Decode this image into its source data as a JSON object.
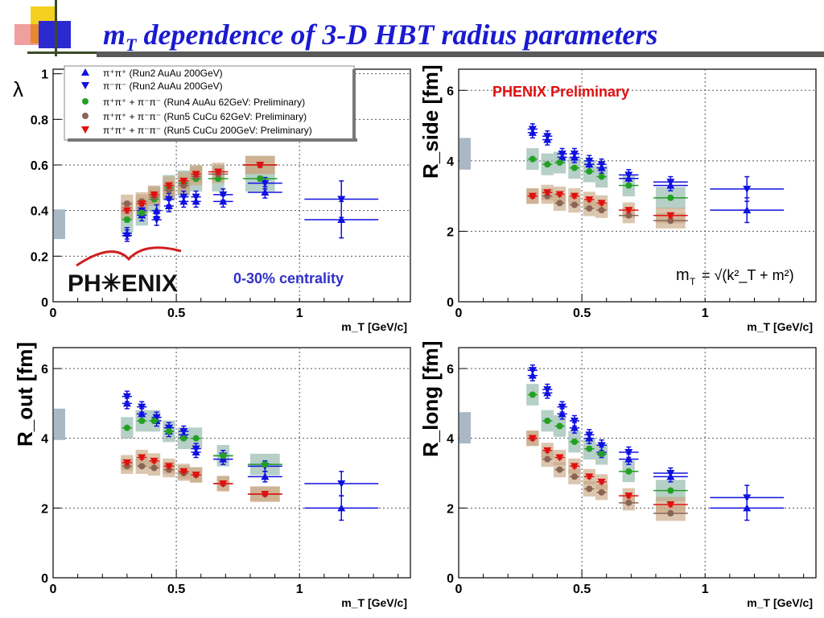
{
  "slide": {
    "title_pre": "m",
    "title_sub": "T",
    "title_post": " dependence of 3-D HBT radius parameters"
  },
  "colors": {
    "run2_pp": "#1010e0",
    "run2_mm": "#1010e0",
    "run4_62": "#22a022",
    "cucu_62": "#8b6355",
    "cucu_200": "#e01010",
    "title": "#1a1ad0"
  },
  "legend": [
    {
      "text": "π⁺π⁺ (Run2 AuAu 200GeV)",
      "marker": "triangle-up",
      "color": "#1010e0"
    },
    {
      "text": "π⁻π⁻ (Run2 AuAu 200GeV)",
      "marker": "triangle-down",
      "color": "#1010e0"
    },
    {
      "text": "π⁺π⁺ + π⁻π⁻ (Run4 AuAu 62GeV: Preliminary)",
      "marker": "circle",
      "color": "#22a022"
    },
    {
      "text": "π⁺π⁺ + π⁻π⁻ (Run5 CuCu 62GeV: Preliminary)",
      "marker": "circle",
      "color": "#8b6355"
    },
    {
      "text": "π⁺π⁺ + π⁻π⁻ (Run5 CuCu 200GeV: Preliminary)",
      "marker": "triangle-down",
      "color": "#e01010"
    }
  ],
  "annotations": {
    "phenix_logo": "PH✳ENIX",
    "centrality": "0-30% centrality",
    "preliminary": "PHENIX Preliminary",
    "formula_lhs": "m",
    "formula_lhs_sub": "T",
    "formula_rhs": "= √(k²_T + m²)"
  },
  "chart_data": [
    {
      "type": "scatter",
      "panel": "lambda",
      "ylabel": "λ",
      "xlabel": "m_T [GeV/c]",
      "xlim": [
        0,
        1.45
      ],
      "ylim": [
        0,
        1.02
      ],
      "xticks": [
        "0",
        "0.5",
        "1"
      ],
      "yticks": [
        "0",
        "0.2",
        "0.4",
        "0.6",
        "0.8",
        "1"
      ],
      "grid": true,
      "series": [
        {
          "name": "π⁺π⁺ (Run2 AuAu 200GeV)",
          "marker": "triangle-up",
          "x": [
            0.3,
            0.36,
            0.42,
            0.47,
            0.53,
            0.58,
            0.69,
            0.86,
            1.17
          ],
          "y": [
            0.3,
            0.38,
            0.4,
            0.42,
            0.44,
            0.44,
            0.44,
            0.48,
            0.36
          ]
        },
        {
          "name": "π⁻π⁻ (Run2 AuAu 200GeV)",
          "marker": "triangle-down",
          "x": [
            0.3,
            0.36,
            0.42,
            0.47,
            0.53,
            0.58,
            0.69,
            0.86,
            1.17
          ],
          "y": [
            0.29,
            0.4,
            0.36,
            0.45,
            0.46,
            0.46,
            0.47,
            0.52,
            0.45
          ]
        },
        {
          "name": "π⁺π⁺ + π⁻π⁻ (Run4 AuAu 62GeV: Preliminary)",
          "marker": "circle",
          "x": [
            0.3,
            0.36,
            0.41,
            0.47,
            0.53,
            0.58,
            0.67,
            0.84
          ],
          "y": [
            0.36,
            0.39,
            0.45,
            0.5,
            0.52,
            0.54,
            0.54,
            0.54
          ]
        },
        {
          "name": "π⁺π⁺ + π⁻π⁻ (Run5 CuCu 62GeV: Preliminary)",
          "marker": "circle",
          "x": [
            0.3,
            0.36,
            0.41,
            0.47,
            0.53,
            0.58,
            0.67,
            0.84
          ],
          "y": [
            0.43,
            0.44,
            0.46,
            0.49,
            0.51,
            0.55,
            0.56,
            0.6
          ]
        },
        {
          "name": "π⁺π⁺ + π⁻π⁻ (Run5 CuCu 200GeV: Preliminary)",
          "marker": "triangle-down",
          "x": [
            0.3,
            0.36,
            0.41,
            0.47,
            0.53,
            0.58,
            0.67,
            0.84
          ],
          "y": [
            0.4,
            0.43,
            0.47,
            0.51,
            0.53,
            0.56,
            0.57,
            0.6
          ]
        }
      ]
    },
    {
      "type": "scatter",
      "panel": "R_side",
      "ylabel": "R_side [fm]",
      "xlabel": "m_T [GeV/c]",
      "xlim": [
        0,
        1.45
      ],
      "ylim": [
        0,
        6.6
      ],
      "xticks": [
        "0",
        "0.5",
        "1"
      ],
      "yticks": [
        "0",
        "2",
        "4",
        "6"
      ],
      "grid": true,
      "series": [
        {
          "name": "π⁺π⁺ (Run2 AuAu 200GeV)",
          "marker": "triangle-up",
          "x": [
            0.3,
            0.36,
            0.42,
            0.47,
            0.53,
            0.58,
            0.69,
            0.86,
            1.17
          ],
          "y": [
            4.8,
            4.6,
            4.1,
            4.1,
            3.9,
            3.8,
            3.5,
            3.3,
            2.6
          ]
        },
        {
          "name": "π⁻π⁻ (Run2 AuAu 200GeV)",
          "marker": "triangle-down",
          "x": [
            0.3,
            0.36,
            0.42,
            0.47,
            0.53,
            0.58,
            0.69,
            0.86,
            1.17
          ],
          "y": [
            4.9,
            4.7,
            4.2,
            4.2,
            4.0,
            3.9,
            3.6,
            3.4,
            3.2
          ]
        },
        {
          "name": "π⁺π⁺ + π⁻π⁻ (Run4 AuAu 62GeV: Preliminary)",
          "marker": "circle",
          "x": [
            0.3,
            0.36,
            0.41,
            0.47,
            0.53,
            0.58,
            0.69,
            0.86
          ],
          "y": [
            4.05,
            3.9,
            3.95,
            3.8,
            3.7,
            3.55,
            3.3,
            2.95
          ]
        },
        {
          "name": "π⁺π⁺ + π⁻π⁻ (Run5 CuCu 62GeV: Preliminary)",
          "marker": "circle",
          "x": [
            0.3,
            0.36,
            0.41,
            0.47,
            0.53,
            0.58,
            0.69,
            0.86
          ],
          "y": [
            3.0,
            3.0,
            2.8,
            2.75,
            2.65,
            2.6,
            2.45,
            2.3
          ]
        },
        {
          "name": "π⁺π⁺ + π⁻π⁻ (Run5 CuCu 200GeV: Preliminary)",
          "marker": "triangle-down",
          "x": [
            0.3,
            0.36,
            0.41,
            0.47,
            0.53,
            0.58,
            0.69,
            0.86
          ],
          "y": [
            3.0,
            3.1,
            3.05,
            3.0,
            2.9,
            2.8,
            2.6,
            2.45
          ]
        }
      ]
    },
    {
      "type": "scatter",
      "panel": "R_out",
      "ylabel": "R_out [fm]",
      "xlabel": "m_T [GeV/c]",
      "xlim": [
        0,
        1.45
      ],
      "ylim": [
        0,
        6.6
      ],
      "xticks": [
        "0",
        "0.5",
        "1"
      ],
      "yticks": [
        "0",
        "2",
        "4",
        "6"
      ],
      "grid": true,
      "series": [
        {
          "name": "π⁺π⁺ (Run2 AuAu 200GeV)",
          "marker": "triangle-up",
          "x": [
            0.3,
            0.36,
            0.42,
            0.47,
            0.53,
            0.58,
            0.69,
            0.86,
            1.17
          ],
          "y": [
            5.0,
            4.7,
            4.5,
            4.2,
            4.1,
            3.6,
            3.4,
            2.9,
            2.0
          ]
        },
        {
          "name": "π⁻π⁻ (Run2 AuAu 200GeV)",
          "marker": "triangle-down",
          "x": [
            0.3,
            0.36,
            0.42,
            0.47,
            0.53,
            0.58,
            0.69,
            0.86,
            1.17
          ],
          "y": [
            5.2,
            4.9,
            4.6,
            4.3,
            4.2,
            3.7,
            3.5,
            3.2,
            2.7
          ]
        },
        {
          "name": "π⁺π⁺ + π⁻π⁻ (Run4 AuAu 62GeV: Preliminary)",
          "marker": "circle",
          "x": [
            0.3,
            0.36,
            0.41,
            0.47,
            0.53,
            0.58,
            0.69,
            0.86
          ],
          "y": [
            4.3,
            4.5,
            4.5,
            4.2,
            4.0,
            4.0,
            3.5,
            3.25
          ]
        },
        {
          "name": "π⁺π⁺ + π⁻π⁻ (Run5 CuCu 62GeV: Preliminary)",
          "marker": "circle",
          "x": [
            0.3,
            0.36,
            0.41,
            0.47,
            0.53,
            0.58,
            0.69,
            0.86
          ],
          "y": [
            3.2,
            3.2,
            3.15,
            3.1,
            3.0,
            2.95,
            2.7,
            2.4
          ]
        },
        {
          "name": "π⁺π⁺ + π⁻π⁻ (Run5 CuCu 200GeV: Preliminary)",
          "marker": "triangle-down",
          "x": [
            0.3,
            0.36,
            0.41,
            0.47,
            0.53,
            0.58,
            0.69,
            0.86
          ],
          "y": [
            3.3,
            3.45,
            3.35,
            3.2,
            3.05,
            2.95,
            2.7,
            2.4
          ]
        }
      ]
    },
    {
      "type": "scatter",
      "panel": "R_long",
      "ylabel": "R_long [fm]",
      "xlabel": "m_T [GeV/c]",
      "xlim": [
        0,
        1.45
      ],
      "ylim": [
        0,
        6.6
      ],
      "xticks": [
        "0",
        "0.5",
        "1"
      ],
      "yticks": [
        "0",
        "2",
        "4",
        "6"
      ],
      "grid": true,
      "series": [
        {
          "name": "π⁺π⁺ (Run2 AuAu 200GeV)",
          "marker": "triangle-up",
          "x": [
            0.3,
            0.36,
            0.42,
            0.47,
            0.53,
            0.58,
            0.69,
            0.86,
            1.17
          ],
          "y": [
            5.8,
            5.3,
            4.7,
            4.3,
            4.0,
            3.6,
            3.4,
            2.9,
            2.0
          ]
        },
        {
          "name": "π⁻π⁻ (Run2 AuAu 200GeV)",
          "marker": "triangle-down",
          "x": [
            0.3,
            0.36,
            0.42,
            0.47,
            0.53,
            0.58,
            0.69,
            0.86,
            1.17
          ],
          "y": [
            5.95,
            5.4,
            4.9,
            4.5,
            4.1,
            3.8,
            3.6,
            3.0,
            2.3
          ]
        },
        {
          "name": "π⁺π⁺ + π⁻π⁻ (Run4 AuAu 62GeV: Preliminary)",
          "marker": "circle",
          "x": [
            0.3,
            0.36,
            0.41,
            0.47,
            0.53,
            0.58,
            0.69,
            0.86
          ],
          "y": [
            5.25,
            4.5,
            4.35,
            3.9,
            3.7,
            3.55,
            3.05,
            2.5
          ]
        },
        {
          "name": "π⁺π⁺ + π⁻π⁻ (Run5 CuCu 62GeV: Preliminary)",
          "marker": "circle",
          "x": [
            0.3,
            0.36,
            0.41,
            0.47,
            0.53,
            0.58,
            0.69,
            0.86
          ],
          "y": [
            4.0,
            3.4,
            3.1,
            2.9,
            2.55,
            2.45,
            2.15,
            1.85
          ]
        },
        {
          "name": "π⁺π⁺ + π⁻π⁻ (Run5 CuCu 200GeV: Preliminary)",
          "marker": "triangle-down",
          "x": [
            0.3,
            0.36,
            0.41,
            0.47,
            0.53,
            0.58,
            0.69,
            0.86
          ],
          "y": [
            4.0,
            3.65,
            3.45,
            3.2,
            2.9,
            2.75,
            2.35,
            2.1
          ]
        }
      ]
    }
  ]
}
